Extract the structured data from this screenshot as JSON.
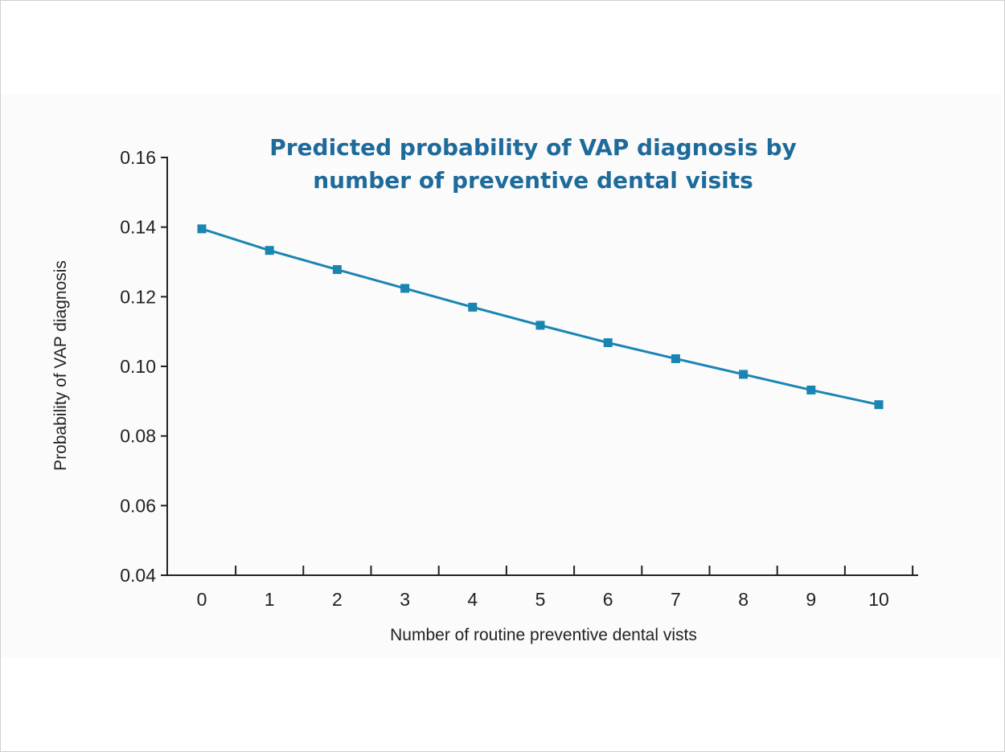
{
  "chart_data": {
    "type": "line",
    "title": "Predicted probability of VAP diagnosis by number of preventive dental visits",
    "title_lines": [
      "Predicted probability of VAP diagnosis by",
      "number of preventive dental visits"
    ],
    "xlabel": "Number of routine preventive dental vists",
    "ylabel": "Probability of VAP diagnosis",
    "x": [
      0,
      1,
      2,
      3,
      4,
      5,
      6,
      7,
      8,
      9,
      10
    ],
    "x_tick_labels": [
      "0",
      "1",
      "2",
      "3",
      "4",
      "5",
      "6",
      "7",
      "8",
      "9",
      "10"
    ],
    "y_tick_labels": [
      "0.04",
      "0.06",
      "0.08",
      "0.10",
      "0.12",
      "0.14",
      "0.16"
    ],
    "y_ticks": [
      0.04,
      0.06,
      0.08,
      0.1,
      0.12,
      0.14,
      0.16
    ],
    "ylim": [
      0.04,
      0.16
    ],
    "series": [
      {
        "values": [
          0.1395,
          0.1333,
          0.1278,
          0.1224,
          0.117,
          0.1118,
          0.1068,
          0.1022,
          0.0977,
          0.0932,
          0.089
        ],
        "marker": "square",
        "color": "#1b85b2"
      }
    ],
    "grid": false,
    "legend": "none"
  }
}
